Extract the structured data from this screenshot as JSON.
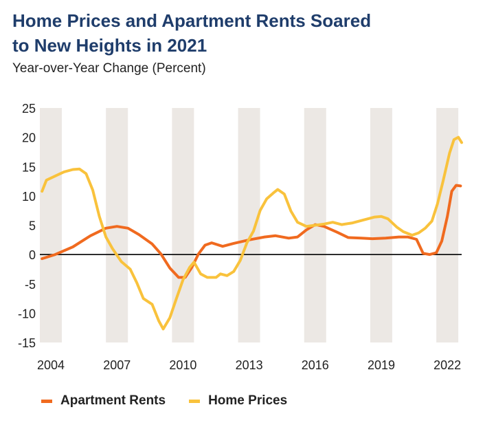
{
  "title_line1": "Home Prices and Apartment Rents Soared",
  "title_line2": "to New Heights in 2021",
  "subtitle": "Year-over-Year Change (Percent)",
  "colors": {
    "rents": "#f06a1f",
    "homes": "#f9c23c",
    "band": "#ece8e4",
    "zero": "#111111"
  },
  "chart_data": {
    "type": "line",
    "title": "Home Prices and Apartment Rents Soared to New Heights in 2021",
    "ylabel": "Year-over-Year Change (Percent)",
    "xlim": [
      2003.5,
      2022.65
    ],
    "ylim": [
      -15,
      25
    ],
    "yticks": [
      25,
      20,
      15,
      10,
      5,
      0,
      -5,
      -10,
      -15
    ],
    "xticks": [
      2004,
      2007,
      2010,
      2013,
      2016,
      2019,
      2022
    ],
    "legend_position": "bottom-left",
    "series": [
      {
        "name": "Apartment Rents",
        "color": "#f06a1f",
        "points": [
          [
            2003.6,
            -0.7
          ],
          [
            2004.2,
            0
          ],
          [
            2005,
            1.3
          ],
          [
            2005.8,
            3.2
          ],
          [
            2006.5,
            4.5
          ],
          [
            2007,
            4.8
          ],
          [
            2007.5,
            4.5
          ],
          [
            2008,
            3.4
          ],
          [
            2008.6,
            1.8
          ],
          [
            2009,
            0.1
          ],
          [
            2009.4,
            -2.3
          ],
          [
            2009.8,
            -3.9
          ],
          [
            2010.1,
            -3.9
          ],
          [
            2010.4,
            -2.2
          ],
          [
            2010.7,
            0.1
          ],
          [
            2011,
            1.6
          ],
          [
            2011.3,
            2
          ],
          [
            2011.8,
            1.4
          ],
          [
            2012.3,
            1.9
          ],
          [
            2013,
            2.5
          ],
          [
            2013.7,
            3
          ],
          [
            2014.2,
            3.2
          ],
          [
            2014.8,
            2.8
          ],
          [
            2015.2,
            3
          ],
          [
            2015.6,
            4.2
          ],
          [
            2016,
            5.1
          ],
          [
            2016.4,
            4.8
          ],
          [
            2017,
            3.8
          ],
          [
            2017.5,
            2.9
          ],
          [
            2018.1,
            2.8
          ],
          [
            2018.6,
            2.7
          ],
          [
            2019.2,
            2.8
          ],
          [
            2019.8,
            3
          ],
          [
            2020.2,
            3
          ],
          [
            2020.6,
            2.6
          ],
          [
            2020.9,
            0.2
          ],
          [
            2021.2,
            0
          ],
          [
            2021.5,
            0.3
          ],
          [
            2021.75,
            2.3
          ],
          [
            2022.0,
            6.5
          ],
          [
            2022.2,
            10.8
          ],
          [
            2022.4,
            11.8
          ],
          [
            2022.6,
            11.7
          ]
        ]
      },
      {
        "name": "Home Prices",
        "color": "#f9c23c",
        "points": [
          [
            2003.6,
            10.8
          ],
          [
            2003.8,
            12.7
          ],
          [
            2004.2,
            13.4
          ],
          [
            2004.6,
            14.1
          ],
          [
            2005,
            14.5
          ],
          [
            2005.3,
            14.6
          ],
          [
            2005.6,
            13.8
          ],
          [
            2005.9,
            11
          ],
          [
            2006.2,
            6.5
          ],
          [
            2006.5,
            3
          ],
          [
            2006.8,
            1
          ],
          [
            2007.2,
            -1.2
          ],
          [
            2007.6,
            -2.5
          ],
          [
            2007.9,
            -4.8
          ],
          [
            2008.2,
            -7.5
          ],
          [
            2008.6,
            -8.5
          ],
          [
            2008.9,
            -11.3
          ],
          [
            2009.1,
            -12.7
          ],
          [
            2009.4,
            -10.8
          ],
          [
            2009.7,
            -7.5
          ],
          [
            2010,
            -4.3
          ],
          [
            2010.3,
            -2.2
          ],
          [
            2010.5,
            -1.3
          ],
          [
            2010.8,
            -3.3
          ],
          [
            2011.1,
            -3.9
          ],
          [
            2011.5,
            -3.9
          ],
          [
            2011.7,
            -3.3
          ],
          [
            2012,
            -3.6
          ],
          [
            2012.3,
            -2.9
          ],
          [
            2012.6,
            -1
          ],
          [
            2012.9,
            2
          ],
          [
            2013.2,
            4
          ],
          [
            2013.5,
            7.5
          ],
          [
            2013.8,
            9.5
          ],
          [
            2014.1,
            10.5
          ],
          [
            2014.3,
            11.1
          ],
          [
            2014.6,
            10.3
          ],
          [
            2014.9,
            7.4
          ],
          [
            2015.2,
            5.5
          ],
          [
            2015.6,
            4.8
          ],
          [
            2016,
            5
          ],
          [
            2016.4,
            5.2
          ],
          [
            2016.8,
            5.5
          ],
          [
            2017.2,
            5.1
          ],
          [
            2017.7,
            5.4
          ],
          [
            2018.2,
            5.9
          ],
          [
            2018.7,
            6.4
          ],
          [
            2019,
            6.5
          ],
          [
            2019.3,
            6.1
          ],
          [
            2019.7,
            4.7
          ],
          [
            2020,
            3.9
          ],
          [
            2020.4,
            3.3
          ],
          [
            2020.7,
            3.7
          ],
          [
            2021,
            4.5
          ],
          [
            2021.3,
            5.7
          ],
          [
            2021.55,
            8.6
          ],
          [
            2021.8,
            12.4
          ],
          [
            2022.1,
            17.3
          ],
          [
            2022.3,
            19.6
          ],
          [
            2022.5,
            20
          ],
          [
            2022.65,
            19.1
          ]
        ]
      }
    ]
  }
}
